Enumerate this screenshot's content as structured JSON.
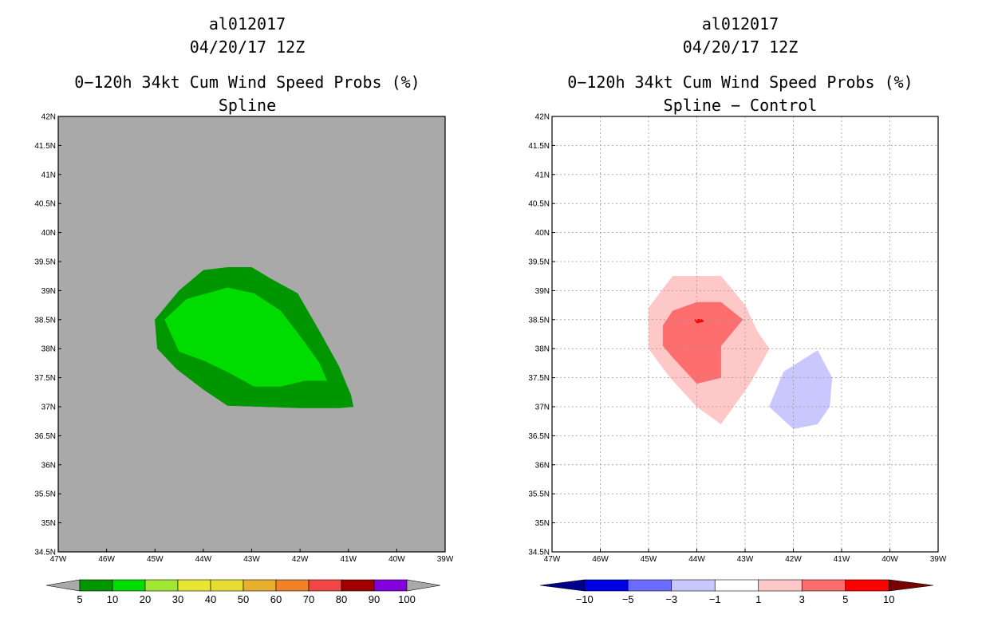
{
  "chart_data": [
    {
      "type": "contour-map",
      "storm_id": "al012017",
      "datetime": "04/20/17 12Z",
      "title": "0−120h 34kt Cum Wind Speed Probs (%)",
      "subtitle": "Spline",
      "background": "#a9a9a9",
      "grid": false,
      "xlim": [
        -47,
        -39
      ],
      "ylim": [
        34.5,
        42
      ],
      "x_ticks": [
        -47,
        -46,
        -45,
        -44,
        -43,
        -42,
        -41,
        -40,
        -39
      ],
      "x_tick_labels": [
        "47W",
        "46W",
        "45W",
        "44W",
        "43W",
        "42W",
        "41W",
        "40W",
        "39W"
      ],
      "y_ticks": [
        34.5,
        35,
        35.5,
        36,
        36.5,
        37,
        37.5,
        38,
        38.5,
        39,
        39.5,
        40,
        40.5,
        41,
        41.5,
        42
      ],
      "y_tick_labels": [
        "34.5N",
        "35N",
        "35.5N",
        "36N",
        "36.5N",
        "37N",
        "37.5N",
        "38N",
        "38.5N",
        "39N",
        "39.5N",
        "40N",
        "40.5N",
        "41N",
        "41.5N",
        "42N"
      ],
      "colorbar": {
        "labels": [
          "5",
          "10",
          "20",
          "30",
          "40",
          "50",
          "60",
          "70",
          "80",
          "90",
          "100"
        ],
        "colors": [
          "#009600",
          "#00dc00",
          "#a0e632",
          "#e6e633",
          "#e6dc32",
          "#e6af2d",
          "#f08228",
          "#f04646",
          "#a00000",
          "#8200dc"
        ],
        "under_color": "#a9a9a9",
        "over_color": "#a9a9a9"
      },
      "regions": [
        {
          "level": "5-10",
          "color": "#009600",
          "points": [
            [
              -44.5,
              39
            ],
            [
              -44.0,
              39.35
            ],
            [
              -43.5,
              39.4
            ],
            [
              -43.0,
              39.4
            ],
            [
              -42.6,
              39.2
            ],
            [
              -42.05,
              38.95
            ],
            [
              -41.6,
              38.3
            ],
            [
              -41.2,
              37.7
            ],
            [
              -40.95,
              37.2
            ],
            [
              -40.9,
              37.0
            ],
            [
              -41.2,
              36.98
            ],
            [
              -42.0,
              36.98
            ],
            [
              -43.5,
              37.02
            ],
            [
              -44.0,
              37.3
            ],
            [
              -44.55,
              37.65
            ],
            [
              -44.95,
              38.0
            ],
            [
              -45.0,
              38.5
            ]
          ]
        },
        {
          "level": "10-20",
          "color": "#00dc00",
          "points": [
            [
              -44.35,
              38.85
            ],
            [
              -43.5,
              39.05
            ],
            [
              -42.95,
              38.95
            ],
            [
              -42.4,
              38.65
            ],
            [
              -41.9,
              38.1
            ],
            [
              -41.6,
              37.75
            ],
            [
              -41.45,
              37.45
            ],
            [
              -41.9,
              37.45
            ],
            [
              -42.4,
              37.35
            ],
            [
              -42.95,
              37.35
            ],
            [
              -43.5,
              37.6
            ],
            [
              -44.0,
              37.8
            ],
            [
              -44.5,
              37.95
            ],
            [
              -44.8,
              38.5
            ]
          ]
        }
      ]
    },
    {
      "type": "contour-map",
      "storm_id": "al012017",
      "datetime": "04/20/17 12Z",
      "title": "0−120h 34kt Cum Wind Speed Probs (%)",
      "subtitle": "Spline − Control",
      "background": "#ffffff",
      "grid": true,
      "xlim": [
        -47,
        -39
      ],
      "ylim": [
        34.5,
        42
      ],
      "x_ticks": [
        -47,
        -46,
        -45,
        -44,
        -43,
        -42,
        -41,
        -40,
        -39
      ],
      "x_tick_labels": [
        "47W",
        "46W",
        "45W",
        "44W",
        "43W",
        "42W",
        "41W",
        "40W",
        "39W"
      ],
      "y_ticks": [
        34.5,
        35,
        35.5,
        36,
        36.5,
        37,
        37.5,
        38,
        38.5,
        39,
        39.5,
        40,
        40.5,
        41,
        41.5,
        42
      ],
      "y_tick_labels": [
        "34.5N",
        "35N",
        "35.5N",
        "36N",
        "36.5N",
        "37N",
        "37.5N",
        "38N",
        "38.5N",
        "39N",
        "39.5N",
        "40N",
        "40.5N",
        "41N",
        "41.5N",
        "42N"
      ],
      "colorbar": {
        "labels": [
          "−10",
          "−5",
          "−3",
          "−1",
          "1",
          "3",
          "5",
          "10"
        ],
        "colors": [
          "#0000e6",
          "#6b6bff",
          "#c8c8ff",
          "#ffffff",
          "#ffc8c8",
          "#ff6e6e",
          "#ff0000"
        ],
        "under_color": "#00008c",
        "over_color": "#780000"
      },
      "regions": [
        {
          "level": "1-3",
          "color": "#ffc8c8",
          "points": [
            [
              -44.5,
              39.25
            ],
            [
              -43.5,
              39.25
            ],
            [
              -43.0,
              38.75
            ],
            [
              -42.75,
              38.3
            ],
            [
              -42.5,
              38.0
            ],
            [
              -42.9,
              37.4
            ],
            [
              -43.5,
              36.7
            ],
            [
              -44.0,
              37.0
            ],
            [
              -44.55,
              37.5
            ],
            [
              -45.0,
              38.0
            ],
            [
              -45.0,
              38.7
            ]
          ]
        },
        {
          "level": "3-5",
          "color": "#ff6e6e",
          "points": [
            [
              -44.5,
              38.65
            ],
            [
              -44.0,
              38.8
            ],
            [
              -43.5,
              38.8
            ],
            [
              -43.05,
              38.5
            ],
            [
              -43.5,
              38.05
            ],
            [
              -43.5,
              37.5
            ],
            [
              -44.0,
              37.4
            ],
            [
              -44.5,
              37.85
            ],
            [
              -44.7,
              38.05
            ],
            [
              -44.7,
              38.4
            ]
          ]
        },
        {
          "level": "5-10",
          "color": "#ff0000",
          "points": [
            [
              -44.05,
              38.5
            ],
            [
              -43.9,
              38.51
            ],
            [
              -43.85,
              38.47
            ],
            [
              -44.0,
              38.44
            ]
          ]
        },
        {
          "level": "-3--1",
          "color": "#c8c8ff",
          "points": [
            [
              -42.5,
              37.0
            ],
            [
              -42.2,
              37.6
            ],
            [
              -41.5,
              37.97
            ],
            [
              -41.2,
              37.5
            ],
            [
              -41.25,
              37.0
            ],
            [
              -41.5,
              36.7
            ],
            [
              -42.0,
              36.62
            ]
          ]
        }
      ]
    }
  ]
}
